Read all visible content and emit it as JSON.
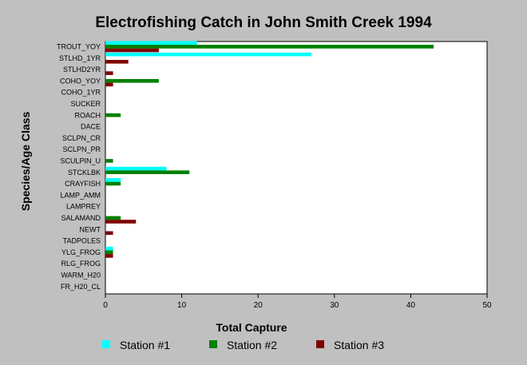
{
  "chart_data": {
    "type": "bar",
    "orientation": "horizontal",
    "title": "Electrofishing Catch in John Smith Creek 1994",
    "xlabel": "Total Capture",
    "ylabel": "Species/Age Class",
    "xlim": [
      0,
      50
    ],
    "xticks": [
      0,
      10,
      20,
      30,
      40,
      50
    ],
    "grid": false,
    "legend_position": "bottom",
    "categories": [
      "TROUT_YOY",
      "STLHD_1YR",
      "STLHD2YR",
      "COHO_YOY",
      "COHO_1YR",
      "SUCKER",
      "ROACH",
      "DACE",
      "SCLPN_CR",
      "SCLPN_PR",
      "SCULPIN_U",
      "STCKLBK",
      "CRAYFISH",
      "LAMP_AMM",
      "LAMPREY",
      "SALAMAND",
      "NEWT",
      "TADPOLES",
      "YLG_FROG",
      "RLG_FROG",
      "WARM_H20",
      "FR_H20_CL"
    ],
    "series": [
      {
        "name": "Station #1",
        "color": "#00ffff",
        "values": [
          12,
          27,
          0,
          0,
          0,
          0,
          0,
          0,
          0,
          0,
          0,
          8,
          2,
          0,
          0,
          0,
          0,
          0,
          1,
          0,
          0,
          0
        ]
      },
      {
        "name": "Station #2",
        "color": "#008000",
        "values": [
          43,
          0,
          0,
          7,
          0,
          0,
          2,
          0,
          0,
          0,
          1,
          11,
          2,
          0,
          0,
          2,
          0,
          0,
          1,
          0,
          0,
          0
        ]
      },
      {
        "name": "Station #3",
        "color": "#800000",
        "values": [
          7,
          3,
          1,
          1,
          0,
          0,
          0,
          0,
          0,
          0,
          0,
          0,
          0,
          0,
          0,
          4,
          1,
          0,
          1,
          0,
          0,
          0
        ]
      }
    ]
  }
}
